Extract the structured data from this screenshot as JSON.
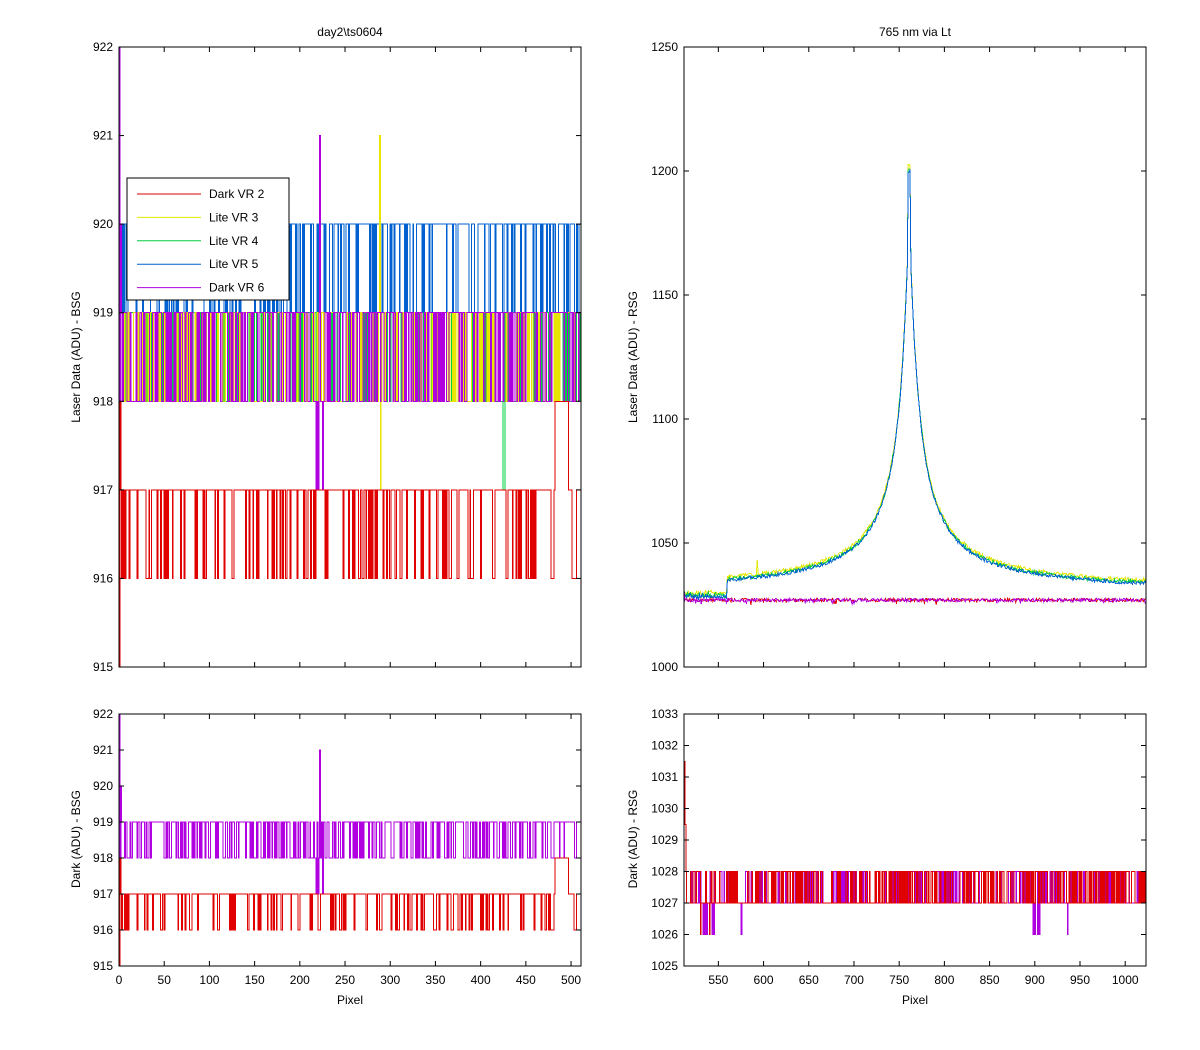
{
  "colors": {
    "Dark VR 2": "#e00000",
    "Lite VR 3": "#e6e600",
    "Lite VR 4": "#00d040",
    "Lite VR 5": "#0060d0",
    "Dark VR 6": "#b000e0"
  },
  "chart_data": [
    {
      "id": "tl",
      "type": "line",
      "title": "day2\\ts0604",
      "xlabel": "",
      "ylabel": "Laser Data (ADU) - BSG",
      "xlim": [
        0,
        511
      ],
      "ylim": [
        915,
        922
      ],
      "xticks": [
        0,
        50,
        100,
        150,
        200,
        250,
        300,
        350,
        400,
        450,
        500
      ],
      "yticks": [
        915,
        916,
        917,
        918,
        919,
        920,
        921,
        922
      ],
      "show_x_ticklabels": false,
      "legend": {
        "position": "upper-left",
        "entries": [
          "Dark VR 2",
          "Lite VR 3",
          "Lite VR 4",
          "Lite VR 5",
          "Dark VR 6"
        ]
      },
      "series": [
        {
          "name": "Lite VR 5",
          "base": 919,
          "noise": [
            919,
            920
          ],
          "noise_ratio": 0.7,
          "start": [
            918,
            920,
            919
          ]
        },
        {
          "name": "Lite VR 4",
          "base": 918,
          "noise": [
            918,
            919
          ],
          "noise_ratio": 0.6,
          "dips": [
            [
              425,
              917
            ],
            [
              426,
              917
            ]
          ]
        },
        {
          "name": "Lite VR 3",
          "base": 918,
          "noise": [
            918,
            919
          ],
          "noise_ratio": 0.6,
          "dips": [
            [
              288,
              921
            ],
            [
              289,
              917
            ],
            [
              290,
              918
            ]
          ]
        },
        {
          "name": "Dark VR 6",
          "base": 918,
          "noise": [
            918,
            919
          ],
          "noise_ratio": 0.6,
          "start": [
            922,
            918,
            920,
            919
          ],
          "dips": [
            [
              218,
              917
            ],
            [
              220,
              917
            ],
            [
              222,
              921
            ],
            [
              223,
              918
            ],
            [
              225,
              917
            ]
          ],
          "block": [
            [
              495,
              511,
              919
            ]
          ]
        },
        {
          "name": "Dark VR 2",
          "base": 917,
          "noise": [
            916,
            917
          ],
          "noise_ratio": 0.22,
          "start": [
            915,
            918,
            917,
            916,
            917
          ],
          "block": [
            [
              478,
              480,
              916
            ],
            [
              482,
              496,
              918
            ],
            [
              497,
              500,
              917
            ],
            [
              503,
              505,
              916
            ],
            [
              506,
              511,
              917
            ]
          ]
        }
      ]
    },
    {
      "id": "bl",
      "type": "line",
      "title": "",
      "xlabel": "Pixel",
      "ylabel": "Dark (ADU) - BSG",
      "xlim": [
        0,
        511
      ],
      "ylim": [
        915,
        922
      ],
      "xticks": [
        0,
        50,
        100,
        150,
        200,
        250,
        300,
        350,
        400,
        450,
        500
      ],
      "yticks": [
        915,
        916,
        917,
        918,
        919,
        920,
        921,
        922
      ],
      "show_x_ticklabels": true,
      "series": [
        {
          "name": "Dark VR 6",
          "base": 918,
          "noise": [
            918,
            919
          ],
          "noise_ratio": 0.6,
          "start": [
            922,
            918,
            920,
            919
          ],
          "dips": [
            [
              218,
              917
            ],
            [
              220,
              917
            ],
            [
              222,
              921
            ],
            [
              223,
              918
            ],
            [
              225,
              917
            ]
          ],
          "block": [
            [
              495,
              511,
              919
            ]
          ]
        },
        {
          "name": "Dark VR 2",
          "base": 917,
          "noise": [
            916,
            917
          ],
          "noise_ratio": 0.22,
          "start": [
            915,
            918,
            917,
            916,
            917
          ],
          "block": [
            [
              478,
              480,
              916
            ],
            [
              482,
              496,
              918
            ],
            [
              497,
              500,
              917
            ],
            [
              503,
              505,
              916
            ],
            [
              506,
              511,
              917
            ]
          ]
        }
      ]
    },
    {
      "id": "tr",
      "type": "line",
      "title": "765 nm via Lt",
      "xlabel": "",
      "ylabel": "Laser Data (ADU) - RSG",
      "xlim": [
        512,
        1023
      ],
      "ylim": [
        1000,
        1250
      ],
      "xticks": [
        550,
        600,
        650,
        700,
        750,
        800,
        850,
        900,
        950,
        1000
      ],
      "yticks": [
        1000,
        1050,
        1100,
        1150,
        1200,
        1250
      ],
      "show_x_ticklabels": false,
      "peak": {
        "x": 761,
        "y": 1200,
        "baseline": 1028
      },
      "series": [
        {
          "name": "Lite VR 3",
          "kind": "peak",
          "offset": 1.2
        },
        {
          "name": "Lite VR 4",
          "kind": "peak",
          "offset": 0.4
        },
        {
          "name": "Lite VR 5",
          "kind": "peak",
          "offset": 0
        },
        {
          "name": "Dark VR 2",
          "kind": "flat",
          "level": 1027
        },
        {
          "name": "Dark VR 6",
          "kind": "flat",
          "level": 1027
        }
      ]
    },
    {
      "id": "br",
      "type": "line",
      "title": "",
      "xlabel": "Pixel",
      "ylabel": "Dark (ADU) - RSG",
      "xlim": [
        512,
        1023
      ],
      "ylim": [
        1025,
        1033
      ],
      "xticks": [
        550,
        600,
        650,
        700,
        750,
        800,
        850,
        900,
        950,
        1000
      ],
      "yticks": [
        1025,
        1026,
        1027,
        1028,
        1029,
        1030,
        1031,
        1032,
        1033
      ],
      "show_x_ticklabels": true,
      "series": [
        {
          "name": "Dark VR 6",
          "base": 1027,
          "noise": [
            1027,
            1028
          ],
          "noise_ratio": 0.35,
          "start": [
            1027,
            1027,
            1027
          ],
          "dips": [
            [
              533,
              1026
            ],
            [
              535,
              1026
            ],
            [
              537,
              1026
            ],
            [
              543,
              1026
            ],
            [
              545,
              1026
            ],
            [
              575,
              1026
            ],
            [
              898,
              1026
            ],
            [
              900,
              1026
            ],
            [
              903,
              1026
            ],
            [
              905,
              1026
            ],
            [
              936,
              1026
            ]
          ]
        },
        {
          "name": "Dark VR 2",
          "base": 1027,
          "noise": [
            1027,
            1028
          ],
          "noise_ratio": 0.45,
          "start": [
            1031.5,
            1029.5,
            1028
          ],
          "dips": [
            [
              530,
              1026
            ],
            [
              540,
              1026
            ]
          ]
        }
      ]
    }
  ]
}
